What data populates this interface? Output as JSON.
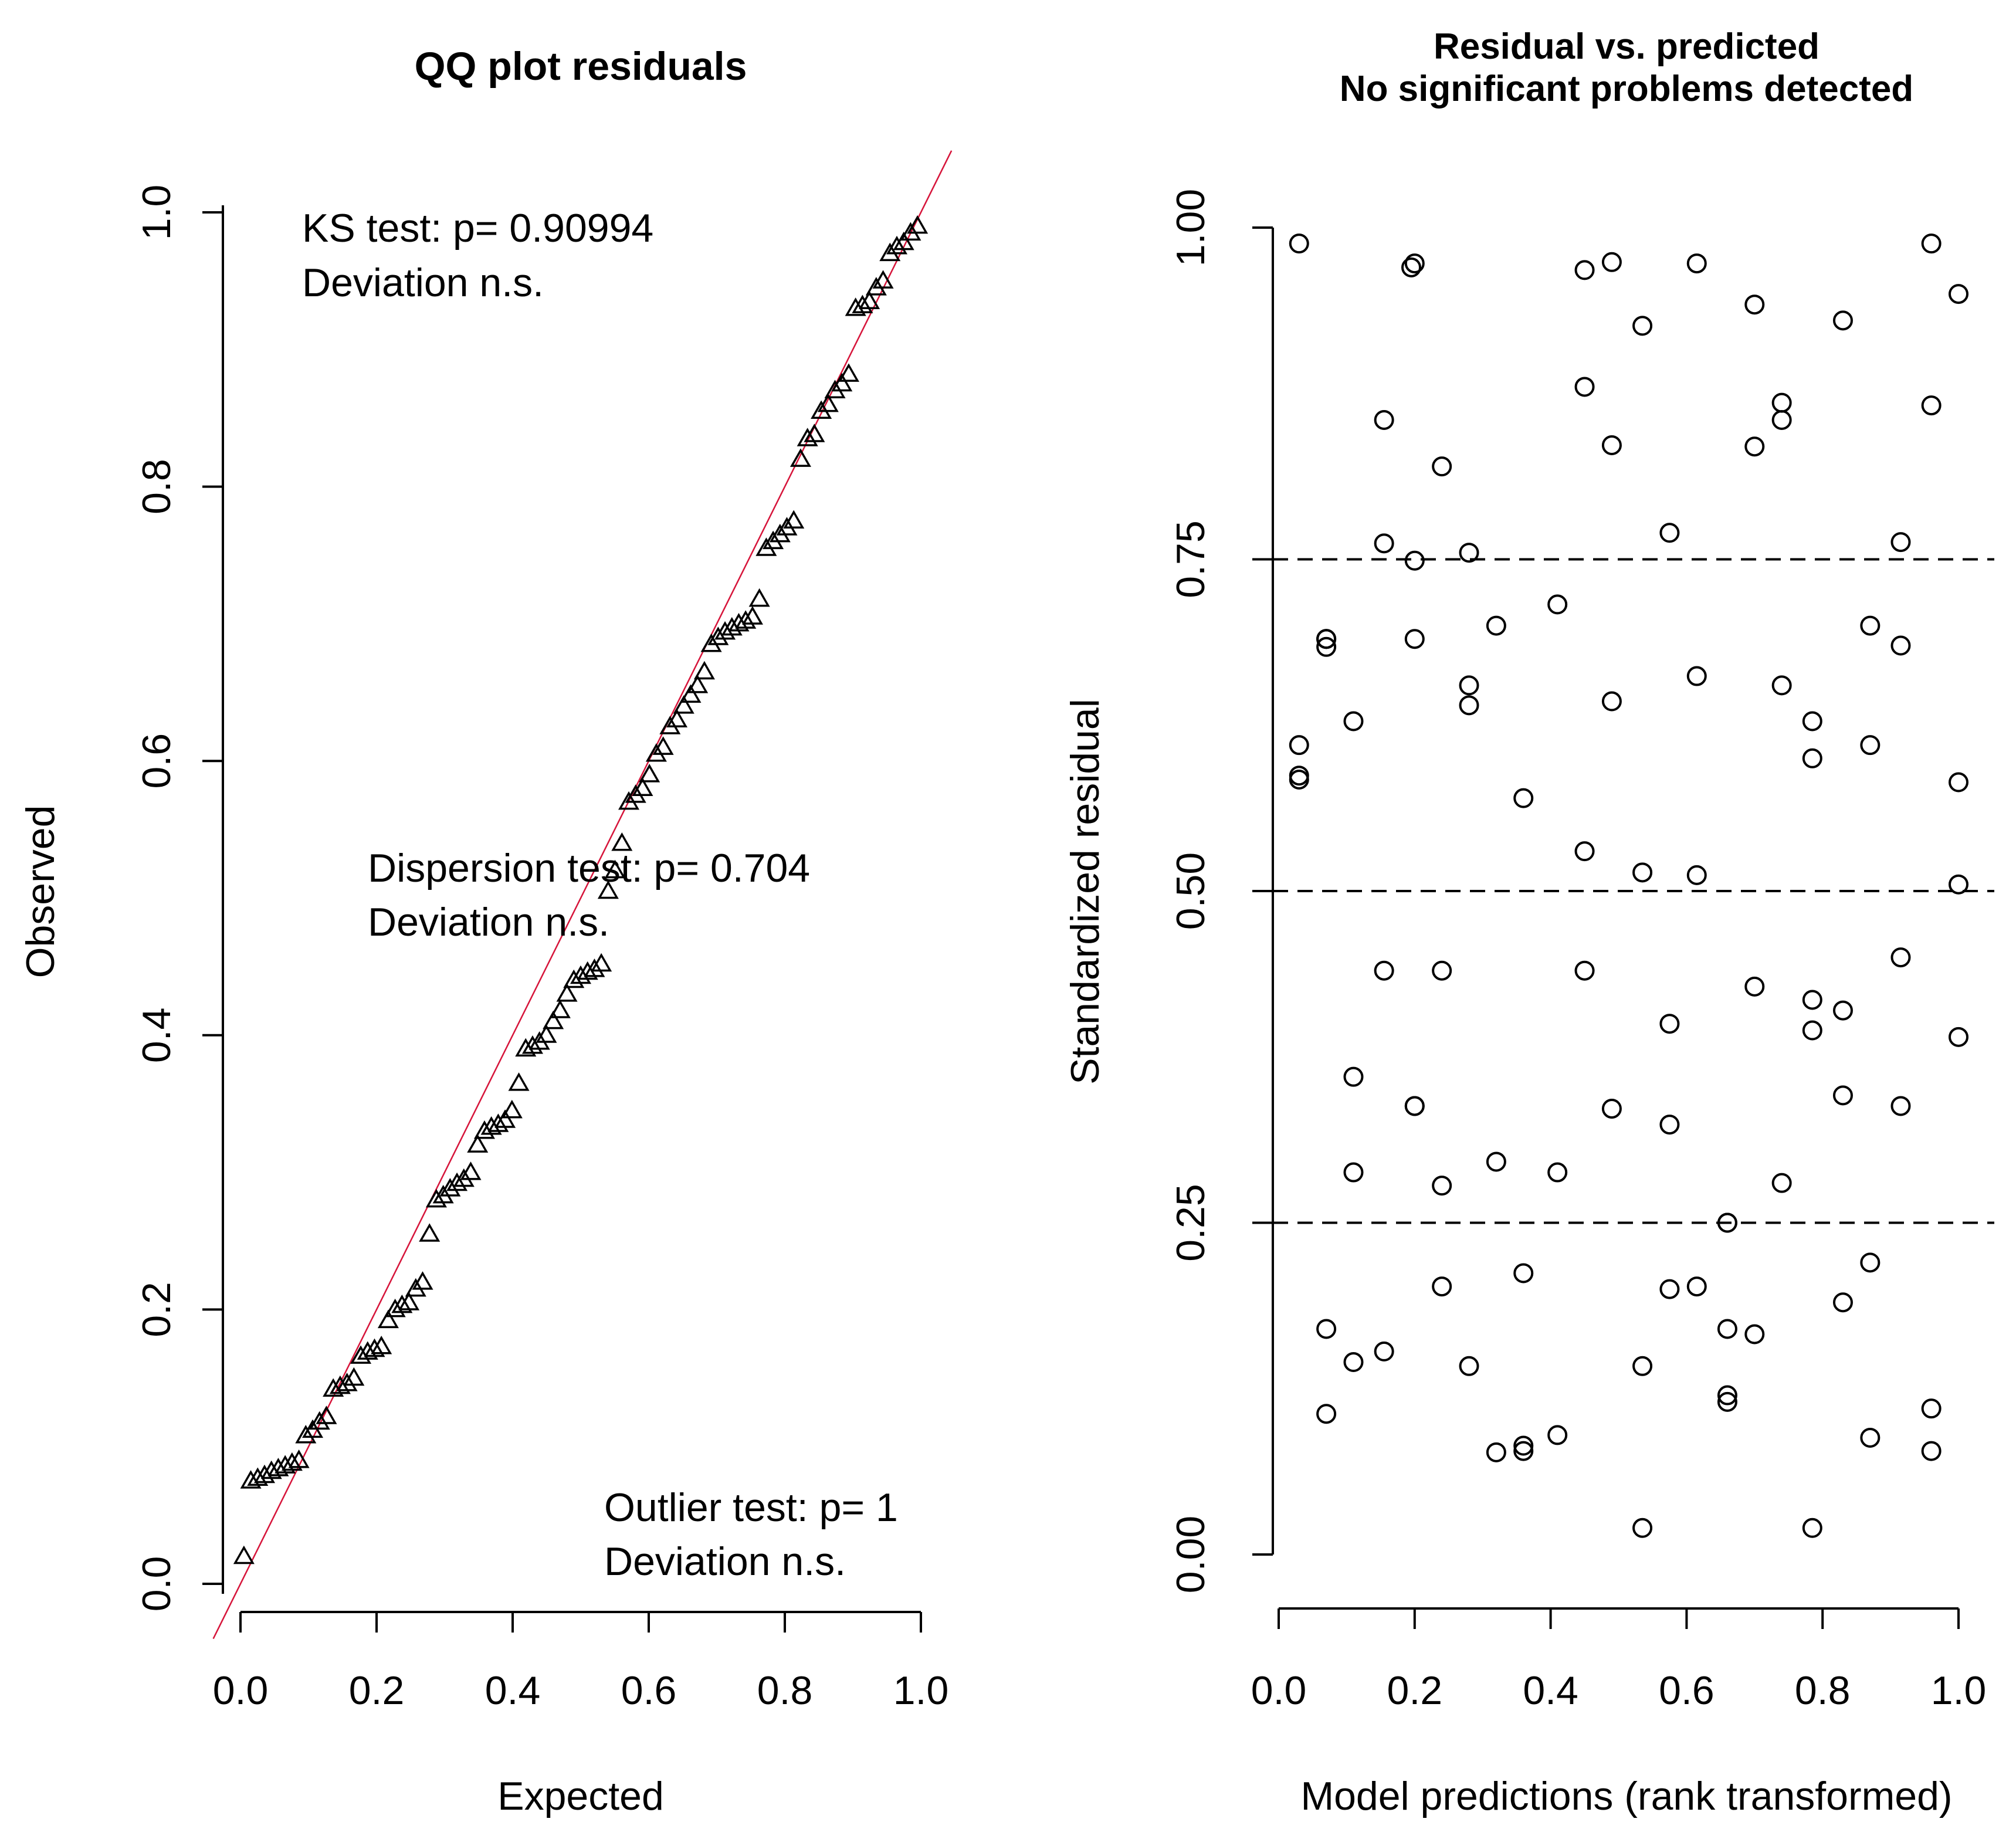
{
  "chart_data": [
    {
      "type": "scatter",
      "title": "QQ plot residuals",
      "xlabel": "Expected",
      "ylabel": "Observed",
      "xlim": [
        0,
        1
      ],
      "ylim": [
        0,
        1
      ],
      "x_ticks": [
        "0.0",
        "0.2",
        "0.4",
        "0.6",
        "0.8",
        "1.0"
      ],
      "y_ticks": [
        "0.0",
        "0.2",
        "0.4",
        "0.6",
        "0.8",
        "1.0"
      ],
      "reference_line": {
        "intercept": 0,
        "slope": 1,
        "color": "#d6143a"
      },
      "marker": "triangle",
      "annotations": {
        "ks_test": "KS test: p= 0.90994",
        "ks_deviation": "Deviation  n.s.",
        "dispersion_test": "Dispersion test: p= 0.704",
        "dispersion_deviation": "Deviation  n.s.",
        "outlier_test": "Outlier test: p= 1",
        "outlier_deviation": "Deviation  n.s."
      },
      "series": [
        {
          "name": "residual quantiles",
          "y": [
            0.02,
            0.075,
            0.077,
            0.079,
            0.082,
            0.084,
            0.086,
            0.088,
            0.09,
            0.108,
            0.112,
            0.118,
            0.122,
            0.142,
            0.144,
            0.146,
            0.15,
            0.166,
            0.169,
            0.171,
            0.173,
            0.192,
            0.2,
            0.203,
            0.205,
            0.215,
            0.22,
            0.255,
            0.28,
            0.283,
            0.288,
            0.292,
            0.295,
            0.3,
            0.32,
            0.33,
            0.333,
            0.335,
            0.338,
            0.345,
            0.365,
            0.39,
            0.392,
            0.395,
            0.4,
            0.41,
            0.418,
            0.43,
            0.44,
            0.443,
            0.446,
            0.448,
            0.452,
            0.505,
            0.52,
            0.54,
            0.57,
            0.575,
            0.58,
            0.59,
            0.605,
            0.61,
            0.625,
            0.63,
            0.64,
            0.648,
            0.655,
            0.665,
            0.685,
            0.69,
            0.694,
            0.697,
            0.7,
            0.702,
            0.705,
            0.718,
            0.755,
            0.76,
            0.765,
            0.77,
            0.775,
            0.82,
            0.835,
            0.838,
            0.855,
            0.86,
            0.87,
            0.875,
            0.882,
            0.93,
            0.932,
            0.935,
            0.945,
            0.95,
            0.97,
            0.975,
            0.978,
            0.985,
            0.99
          ]
        }
      ]
    },
    {
      "type": "scatter",
      "title_line1": "Residual vs. predicted",
      "title_line2": "No significant problems detected",
      "xlabel": "Model predictions (rank transformed)",
      "ylabel": "Standardized residual",
      "xlim": [
        0,
        1
      ],
      "ylim": [
        0,
        1
      ],
      "x_ticks": [
        "0.0",
        "0.2",
        "0.4",
        "0.6",
        "0.8",
        "1.0"
      ],
      "y_ticks": [
        "0.00",
        "0.25",
        "0.50",
        "0.75",
        "1.00"
      ],
      "horizontal_lines": [
        0.25,
        0.5,
        0.75
      ],
      "marker": "circle",
      "series": [
        {
          "name": "residuals",
          "x": [
            0.03,
            0.03,
            0.03,
            0.03,
            0.07,
            0.07,
            0.07,
            0.07,
            0.07,
            0.11,
            0.11,
            0.11,
            0.11,
            0.155,
            0.155,
            0.155,
            0.155,
            0.2,
            0.2,
            0.2,
            0.2,
            0.2,
            0.24,
            0.24,
            0.24,
            0.24,
            0.28,
            0.28,
            0.28,
            0.28,
            0.32,
            0.32,
            0.32,
            0.36,
            0.36,
            0.36,
            0.36,
            0.41,
            0.41,
            0.41,
            0.45,
            0.45,
            0.45,
            0.45,
            0.49,
            0.49,
            0.49,
            0.49,
            0.535,
            0.535,
            0.535,
            0.535,
            0.575,
            0.575,
            0.575,
            0.575,
            0.615,
            0.615,
            0.615,
            0.615,
            0.66,
            0.66,
            0.66,
            0.66,
            0.7,
            0.7,
            0.7,
            0.7,
            0.74,
            0.74,
            0.74,
            0.74,
            0.785,
            0.785,
            0.785,
            0.785,
            0.785,
            0.83,
            0.83,
            0.83,
            0.83,
            0.87,
            0.87,
            0.87,
            0.87,
            0.915,
            0.915,
            0.915,
            0.915,
            0.96,
            0.96,
            0.96,
            0.96,
            1.0,
            1.0,
            1.0,
            1.0,
            0.195,
            0.66,
            0.07
          ],
          "y": [
            0.988,
            0.61,
            0.587,
            0.584,
            0.69,
            0.684,
            0.17,
            0.106,
            0.69,
            0.628,
            0.36,
            0.288,
            0.145,
            0.855,
            0.762,
            0.44,
            0.153,
            0.973,
            0.749,
            0.338,
            0.69,
            0.338,
            0.82,
            0.44,
            0.278,
            0.202,
            0.755,
            0.655,
            0.64,
            0.142,
            0.7,
            0.296,
            0.077,
            0.57,
            0.212,
            0.078,
            0.082,
            0.716,
            0.288,
            0.09,
            0.968,
            0.88,
            0.53,
            0.44,
            0.974,
            0.836,
            0.643,
            0.336,
            0.926,
            0.514,
            0.142,
            0.02,
            0.77,
            0.4,
            0.324,
            0.2,
            0.973,
            0.662,
            0.512,
            0.202,
            0.25,
            0.17,
            0.12,
            0.115,
            0.942,
            0.835,
            0.428,
            0.166,
            0.868,
            0.855,
            0.655,
            0.28,
            0.628,
            0.418,
            0.395,
            0.02,
            0.6,
            0.93,
            0.41,
            0.346,
            0.19,
            0.7,
            0.61,
            0.22,
            0.088,
            0.763,
            0.685,
            0.45,
            0.338,
            0.988,
            0.866,
            0.11,
            0.078,
            0.95,
            0.582,
            0.505,
            0.39,
            0.97,
            0.25,
            0.69
          ]
        }
      ]
    }
  ]
}
